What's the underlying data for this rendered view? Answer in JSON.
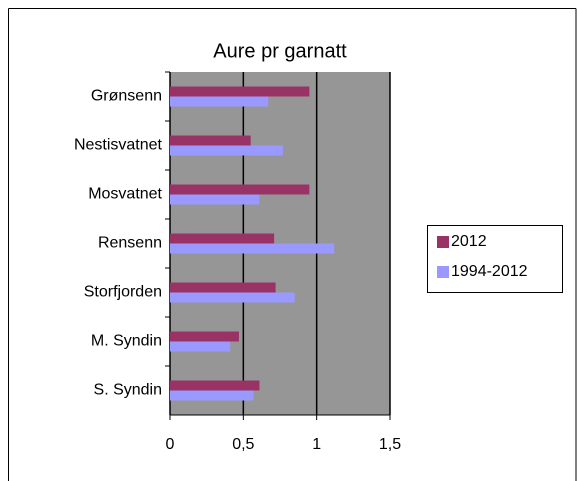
{
  "chart_data": {
    "type": "bar",
    "orientation": "horizontal",
    "title": "Aure pr garnatt",
    "categories": [
      "Grønsenn",
      "Nestisvatnet",
      "Mosvatnet",
      "Rensenn",
      "Storfjorden",
      "M. Syndin",
      "S. Syndin"
    ],
    "series": [
      {
        "name": "2012",
        "color": "#993366",
        "values": [
          0.95,
          0.55,
          0.95,
          0.71,
          0.72,
          0.47,
          0.61
        ]
      },
      {
        "name": "1994-2012",
        "color": "#9999ff",
        "values": [
          0.67,
          0.77,
          0.61,
          1.12,
          0.85,
          0.41,
          0.57
        ]
      }
    ],
    "xlim": [
      0,
      1.5
    ],
    "xticks": [
      0,
      {
        "value": 0.5,
        "label": "0,5"
      },
      1,
      {
        "value": 1.5,
        "label": "1,5"
      }
    ],
    "grid": true,
    "legend": "right",
    "plot_background": "#969696"
  }
}
